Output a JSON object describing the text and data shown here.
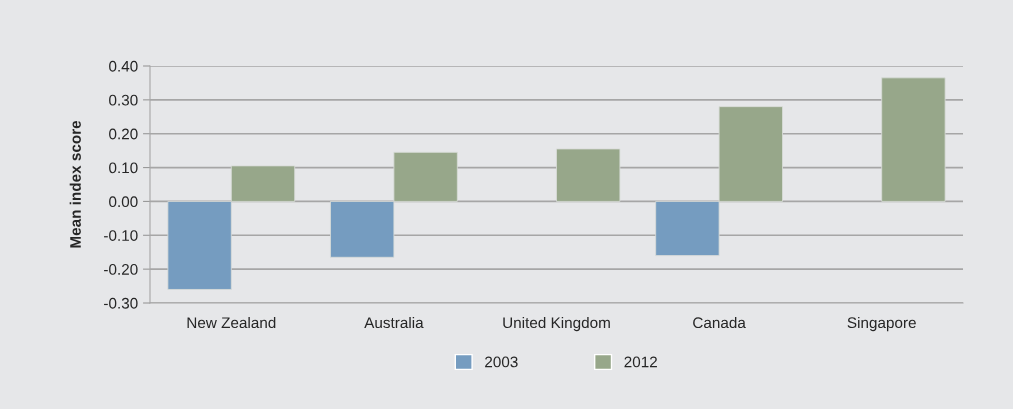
{
  "chart_data": {
    "type": "bar",
    "ylabel": "Mean index score",
    "categories": [
      "New Zealand",
      "Australia",
      "United Kingdom",
      "Canada",
      "Singapore"
    ],
    "series": [
      {
        "name": "2003",
        "color": "#759cc0",
        "values": [
          -0.26,
          -0.165,
          null,
          -0.16,
          null
        ]
      },
      {
        "name": "2012",
        "color": "#97a78a",
        "values": [
          0.105,
          0.145,
          0.155,
          0.28,
          0.365
        ]
      }
    ],
    "ylim": [
      -0.3,
      0.4
    ],
    "yticks": [
      {
        "value": -0.3,
        "label": "-0.30"
      },
      {
        "value": -0.2,
        "label": "-0.20"
      },
      {
        "value": -0.1,
        "label": "-0.10"
      },
      {
        "value": 0,
        "label": "0.00"
      },
      {
        "value": 0.1,
        "label": "0.10"
      },
      {
        "value": 0.2,
        "label": "0.20"
      },
      {
        "value": 0.3,
        "label": "0.30"
      },
      {
        "value": 0.4,
        "label": "0.40"
      }
    ],
    "grid": "y",
    "legend": "bottom"
  }
}
